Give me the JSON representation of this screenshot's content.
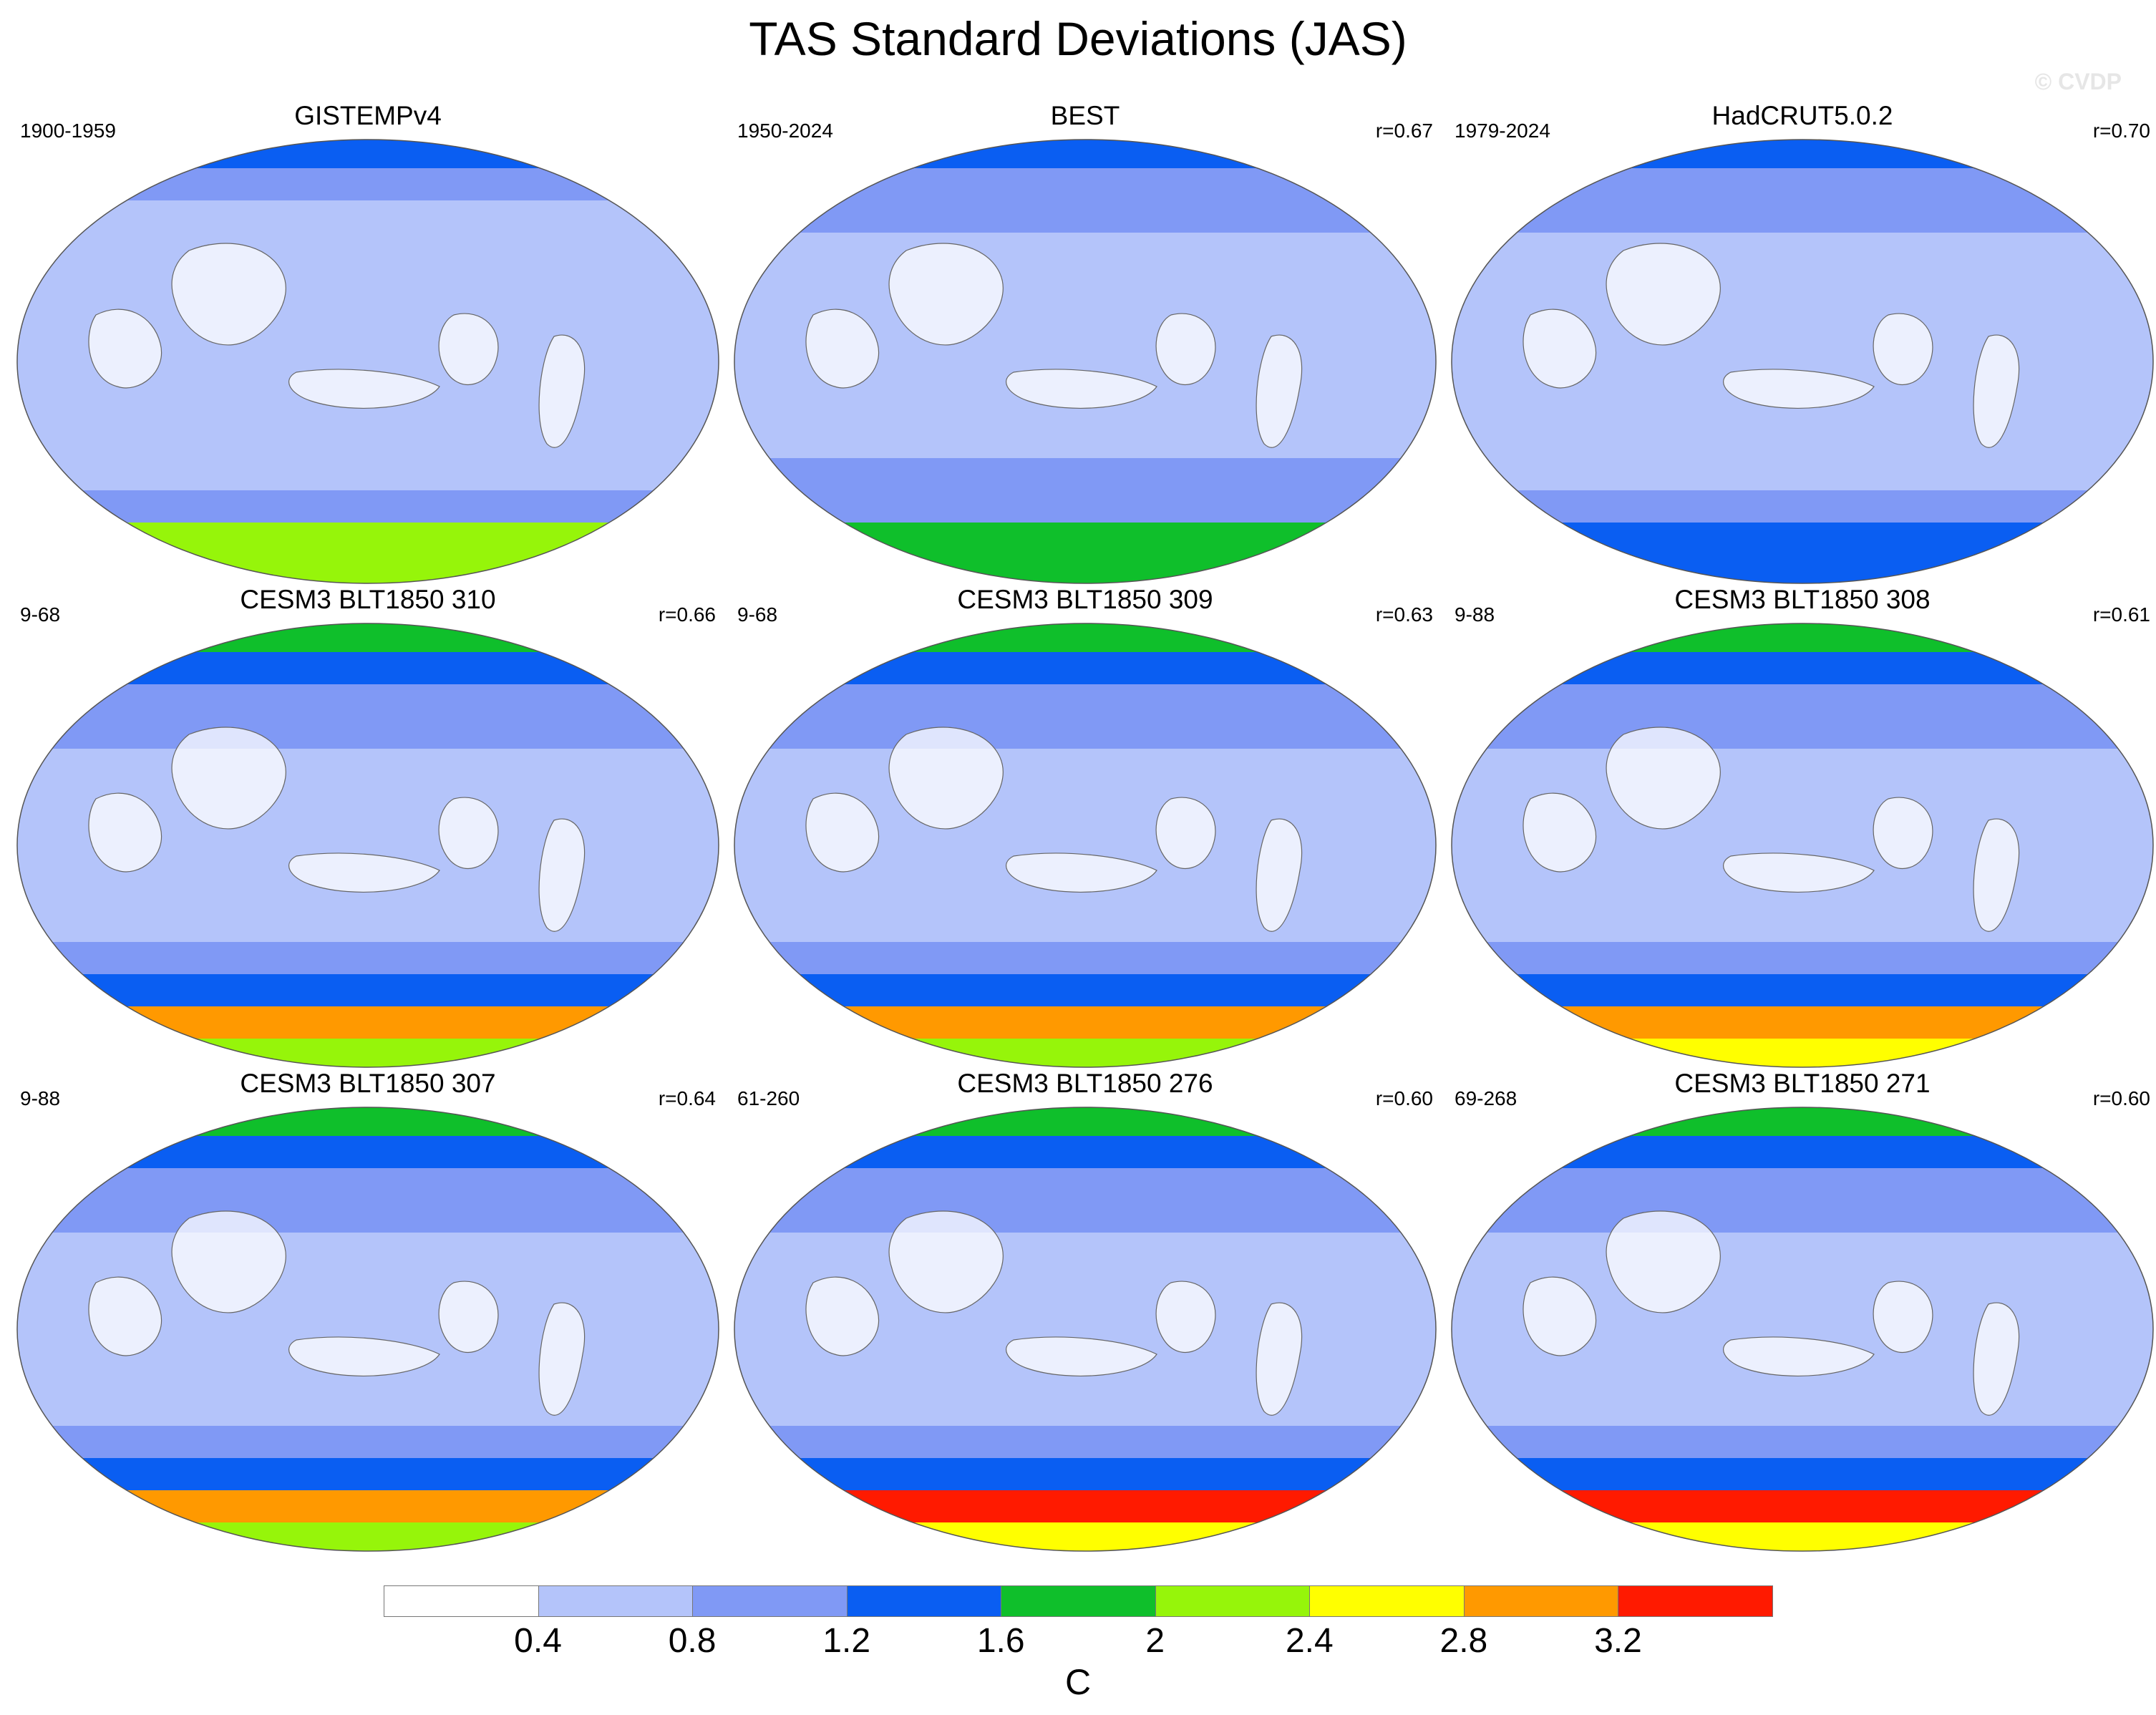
{
  "title": "TAS Standard Deviations (JAS)",
  "watermark": "© CVDP",
  "chart_data": {
    "type": "heatmap",
    "projection": "Robinson (Pacific-centred global maps)",
    "variable": "TAS standard deviation, July–September",
    "units": "C",
    "colorbar": {
      "levels": [
        0.4,
        0.8,
        1.2,
        1.6,
        2,
        2.4,
        2.8,
        3.2
      ],
      "tick_labels": [
        "0.4",
        "0.8",
        "1.2",
        "1.6",
        "2",
        "2.4",
        "2.8",
        "3.2"
      ],
      "colors": [
        "#ffffff",
        "#b4c4fa",
        "#8099f5",
        "#0a5ef2",
        "#0fbf2b",
        "#96f50a",
        "#ffff00",
        "#ff9900",
        "#ff1a00"
      ],
      "units_label": "C"
    },
    "panels": [
      {
        "title": "GISTEMPv4",
        "period": "1900-1959",
        "corr": "",
        "profile": [
          3,
          2,
          1,
          1,
          1,
          1,
          1,
          1,
          1,
          1,
          1,
          2,
          5,
          5
        ]
      },
      {
        "title": "BEST",
        "period": "1950-2024",
        "corr": "r=0.67",
        "profile": [
          3,
          2,
          2,
          1,
          1,
          1,
          1,
          1,
          1,
          1,
          2,
          2,
          4,
          4
        ]
      },
      {
        "title": "HadCRUT5.0.2",
        "period": "1979-2024",
        "corr": "r=0.70",
        "profile": [
          3,
          2,
          2,
          1,
          1,
          1,
          1,
          1,
          1,
          1,
          1,
          2,
          3,
          3
        ]
      },
      {
        "title": "CESM3 BLT1850 310",
        "period": "9-68",
        "corr": "r=0.66",
        "profile": [
          4,
          3,
          2,
          2,
          1,
          1,
          1,
          1,
          1,
          1,
          2,
          3,
          7,
          5
        ]
      },
      {
        "title": "CESM3 BLT1850 309",
        "period": "9-68",
        "corr": "r=0.63",
        "profile": [
          4,
          3,
          2,
          2,
          1,
          1,
          1,
          1,
          1,
          1,
          2,
          3,
          7,
          5
        ]
      },
      {
        "title": "CESM3 BLT1850 308",
        "period": "9-88",
        "corr": "r=0.61",
        "profile": [
          4,
          3,
          2,
          2,
          1,
          1,
          1,
          1,
          1,
          1,
          2,
          3,
          7,
          6
        ]
      },
      {
        "title": "CESM3 BLT1850 307",
        "period": "9-88",
        "corr": "r=0.64",
        "profile": [
          4,
          3,
          2,
          2,
          1,
          1,
          1,
          1,
          1,
          1,
          2,
          3,
          7,
          5
        ]
      },
      {
        "title": "CESM3 BLT1850 276",
        "period": "61-260",
        "corr": "r=0.60",
        "profile": [
          4,
          3,
          2,
          2,
          1,
          1,
          1,
          1,
          1,
          1,
          2,
          3,
          8,
          6
        ]
      },
      {
        "title": "CESM3 BLT1850 271",
        "period": "69-268",
        "corr": "r=0.60",
        "profile": [
          4,
          3,
          2,
          2,
          1,
          1,
          1,
          1,
          1,
          1,
          2,
          3,
          8,
          6
        ]
      }
    ]
  }
}
